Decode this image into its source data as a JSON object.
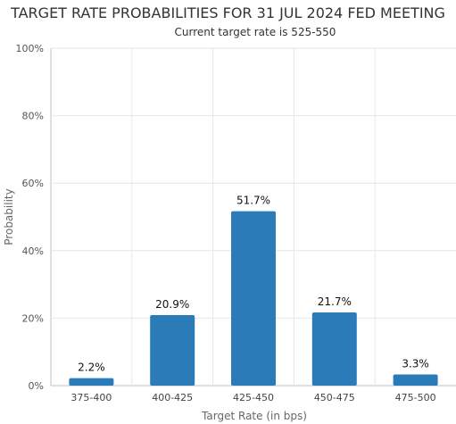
{
  "chart_data": {
    "type": "bar",
    "title": "TARGET RATE PROBABILITIES FOR 31 JUL 2024 FED MEETING",
    "subtitle": "Current target rate is 525-550",
    "xlabel": "Target Rate (in bps)",
    "ylabel": "Probability",
    "categories": [
      "375-400",
      "400-425",
      "425-450",
      "450-475",
      "475-500"
    ],
    "values": [
      2.2,
      20.9,
      51.7,
      21.7,
      3.3
    ],
    "data_labels": [
      "2.2%",
      "20.9%",
      "51.7%",
      "21.7%",
      "3.3%"
    ],
    "ylim": [
      0,
      100
    ],
    "yticks": [
      0,
      20,
      40,
      60,
      80,
      100
    ],
    "ytick_labels": [
      "0%",
      "20%",
      "40%",
      "60%",
      "80%",
      "100%"
    ],
    "grid": true,
    "legend": "none",
    "colors": {
      "bar": "#2b7bb8",
      "grid": "#e6e6e6",
      "axis": "#c0c0c0"
    }
  }
}
